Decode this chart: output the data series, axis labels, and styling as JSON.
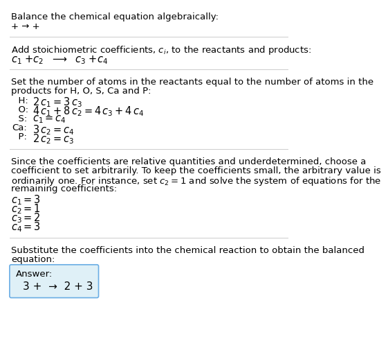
{
  "title": "Balance the chemical equation algebraically:",
  "line1_plain": "+ → +",
  "section1_header": "Add stoichiometric coefficients, $c_i$, to the reactants and products:",
  "section1_eq_parts": [
    "$c_1$",
    " +",
    "$c_2$",
    "   →",
    "  $c_3$",
    " +",
    "$c_4$"
  ],
  "section2_header_lines": [
    "Set the number of atoms in the reactants equal to the number of atoms in the",
    "products for H, O, S, Ca and P:"
  ],
  "section2_lines": [
    [
      "  H:",
      "$2\\,c_1 = 3\\,c_3$"
    ],
    [
      "  O:",
      "$4\\,c_1 + 8\\,c_2 = 4\\,c_3 + 4\\,c_4$"
    ],
    [
      "  S:",
      "$c_1 = c_4$"
    ],
    [
      "Ca:",
      "$3\\,c_2 = c_4$"
    ],
    [
      "  P:",
      "$2\\,c_2 = c_3$"
    ]
  ],
  "section3_header_lines": [
    "Since the coefficients are relative quantities and underdetermined, choose a",
    "coefficient to set arbitrarily. To keep the coefficients small, the arbitrary value is",
    "ordinarily one. For instance, set $c_2 = 1$ and solve the system of equations for the",
    "remaining coefficients:"
  ],
  "section3_lines": [
    "$c_1 = 3$",
    "$c_2 = 1$",
    "$c_3 = 2$",
    "$c_4 = 3$"
  ],
  "section4_header_lines": [
    "Substitute the coefficients into the chemical reaction to obtain the balanced",
    "equation:"
  ],
  "answer_label": "Answer:",
  "answer_eq": "3 +  →  2 + 3",
  "bg_color": "#ffffff",
  "text_color": "#000000",
  "box_bg": "#dff0f7",
  "box_border": "#6aade4",
  "divider_color": "#cccccc",
  "fs_body": 9.5,
  "fs_math": 10.5,
  "fs_answer": 11
}
